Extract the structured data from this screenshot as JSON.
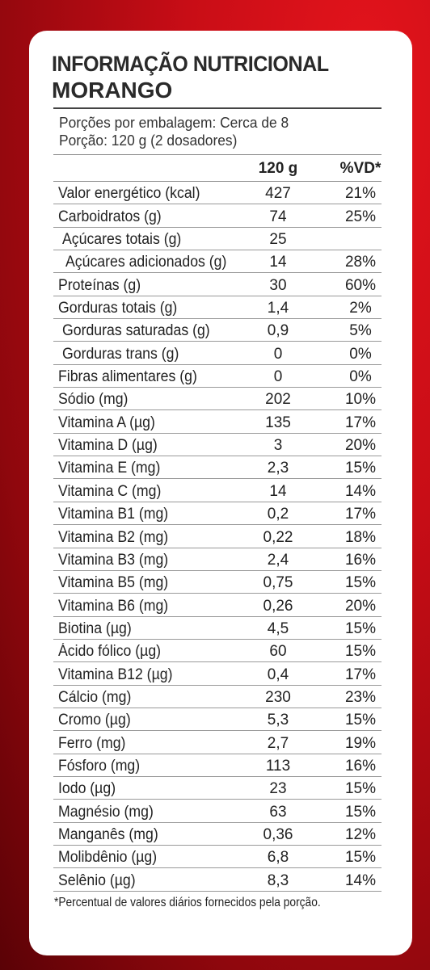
{
  "title": "INFORMAÇÃO NUTRICIONAL",
  "flavor": "MORANGO",
  "portions_per_package": "Porções por embalagem: Cerca de 8",
  "portion": "Porção: 120 g (2 dosadores)",
  "columns": {
    "amount": "120 g",
    "dv": "%VD*"
  },
  "rows": [
    {
      "name": "Valor energético (kcal)",
      "amount": "427",
      "dv": "21%",
      "indent": 0
    },
    {
      "name": "Carboidratos (g)",
      "amount": "74",
      "dv": "25%",
      "indent": 0
    },
    {
      "name": "Açúcares totais (g)",
      "amount": "25",
      "dv": "",
      "indent": 1
    },
    {
      "name": "Açúcares adicionados (g)",
      "amount": "14",
      "dv": "28%",
      "indent": 2
    },
    {
      "name": "Proteínas (g)",
      "amount": "30",
      "dv": "60%",
      "indent": 0
    },
    {
      "name": "Gorduras totais (g)",
      "amount": "1,4",
      "dv": "2%",
      "indent": 0
    },
    {
      "name": "Gorduras saturadas (g)",
      "amount": "0,9",
      "dv": "5%",
      "indent": 1
    },
    {
      "name": "Gorduras trans (g)",
      "amount": "0",
      "dv": "0%",
      "indent": 1
    },
    {
      "name": "Fibras alimentares (g)",
      "amount": "0",
      "dv": "0%",
      "indent": 0
    },
    {
      "name": "Sódio (mg)",
      "amount": "202",
      "dv": "10%",
      "indent": 0
    },
    {
      "name": "Vitamina A (µg)",
      "amount": "135",
      "dv": "17%",
      "indent": 0
    },
    {
      "name": "Vitamina D (µg)",
      "amount": "3",
      "dv": "20%",
      "indent": 0
    },
    {
      "name": "Vitamina E (mg)",
      "amount": "2,3",
      "dv": "15%",
      "indent": 0
    },
    {
      "name": "Vitamina C (mg)",
      "amount": "14",
      "dv": "14%",
      "indent": 0
    },
    {
      "name": "Vitamina B1 (mg)",
      "amount": "0,2",
      "dv": "17%",
      "indent": 0
    },
    {
      "name": "Vitamina B2 (mg)",
      "amount": "0,22",
      "dv": "18%",
      "indent": 0
    },
    {
      "name": "Vitamina B3 (mg)",
      "amount": "2,4",
      "dv": "16%",
      "indent": 0
    },
    {
      "name": "Vitamina B5 (mg)",
      "amount": "0,75",
      "dv": "15%",
      "indent": 0
    },
    {
      "name": "Vitamina B6 (mg)",
      "amount": "0,26",
      "dv": "20%",
      "indent": 0
    },
    {
      "name": "Biotina (µg)",
      "amount": "4,5",
      "dv": "15%",
      "indent": 0
    },
    {
      "name": "Ácido fólico (µg)",
      "amount": "60",
      "dv": "15%",
      "indent": 0
    },
    {
      "name": "Vitamina B12 (µg)",
      "amount": "0,4",
      "dv": "17%",
      "indent": 0
    },
    {
      "name": "Cálcio (mg)",
      "amount": "230",
      "dv": "23%",
      "indent": 0
    },
    {
      "name": "Cromo (µg)",
      "amount": "5,3",
      "dv": "15%",
      "indent": 0
    },
    {
      "name": "Ferro (mg)",
      "amount": "2,7",
      "dv": "19%",
      "indent": 0
    },
    {
      "name": "Fósforo (mg)",
      "amount": "113",
      "dv": "16%",
      "indent": 0
    },
    {
      "name": "Iodo (µg)",
      "amount": "23",
      "dv": "15%",
      "indent": 0
    },
    {
      "name": "Magnésio (mg)",
      "amount": "63",
      "dv": "15%",
      "indent": 0
    },
    {
      "name": "Manganês (mg)",
      "amount": "0,36",
      "dv": "12%",
      "indent": 0
    },
    {
      "name": "Molibdênio (µg)",
      "amount": "6,8",
      "dv": "15%",
      "indent": 0
    },
    {
      "name": "Selênio (µg)",
      "amount": "8,3",
      "dv": "14%",
      "indent": 0
    }
  ],
  "footnote": "*Percentual de valores diários fornecidos pela porção.",
  "colors": {
    "background": "#c80d16",
    "card": "#ffffff",
    "text": "#222222"
  }
}
